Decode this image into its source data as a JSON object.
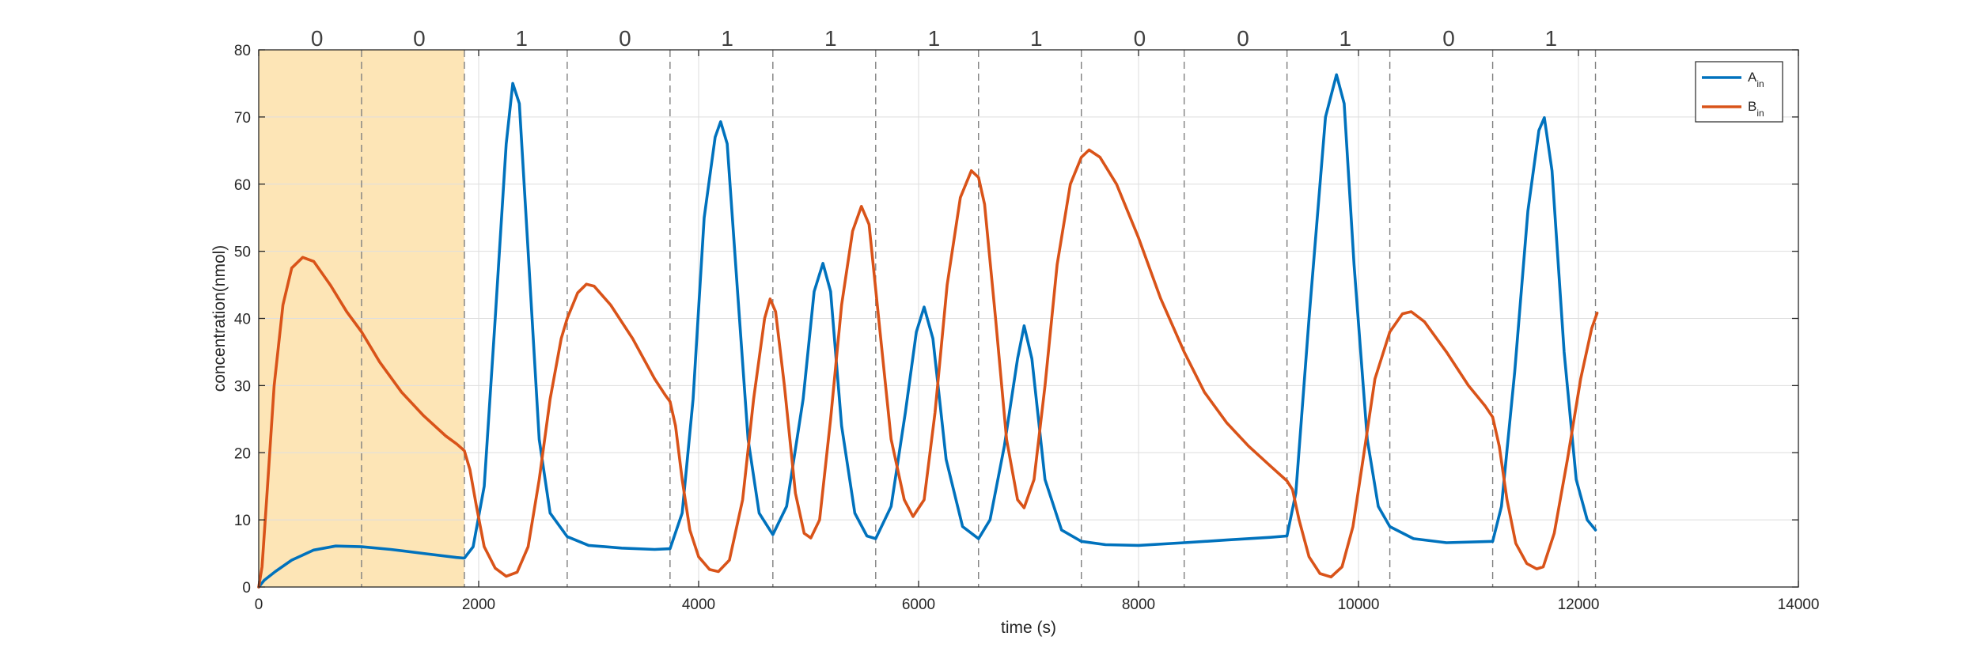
{
  "chart_data": {
    "type": "line",
    "title": "",
    "xlabel": "time (s)",
    "ylabel": "concentration(nmol)",
    "xlim": [
      0,
      14000
    ],
    "ylim": [
      0,
      80
    ],
    "xticks": [
      0,
      2000,
      4000,
      6000,
      8000,
      10000,
      12000,
      14000
    ],
    "yticks": [
      0,
      10,
      20,
      30,
      40,
      50,
      60,
      70,
      80
    ],
    "grid": true,
    "legend_position": "top-right",
    "colors": {
      "A": "#0072BD",
      "B": "#D95319",
      "highlight": "#FDE5B6",
      "divider": "#7f7f7f"
    },
    "highlight_range": [
      0,
      1870
    ],
    "dividers": [
      935,
      1870,
      2805,
      3740,
      4675,
      5610,
      6545,
      7480,
      8415,
      9350,
      10285,
      11220,
      12155
    ],
    "bits": [
      {
        "x": 530,
        "label": "0"
      },
      {
        "x": 1460,
        "label": "0"
      },
      {
        "x": 2390,
        "label": "1"
      },
      {
        "x": 3330,
        "label": "0"
      },
      {
        "x": 4260,
        "label": "1"
      },
      {
        "x": 5200,
        "label": "1"
      },
      {
        "x": 6140,
        "label": "1"
      },
      {
        "x": 7070,
        "label": "1"
      },
      {
        "x": 8010,
        "label": "0"
      },
      {
        "x": 8950,
        "label": "0"
      },
      {
        "x": 9880,
        "label": "1"
      },
      {
        "x": 10820,
        "label": "0"
      },
      {
        "x": 11750,
        "label": "1"
      }
    ],
    "legend": [
      {
        "key": "A",
        "main": "A",
        "sub": "in"
      },
      {
        "key": "B",
        "main": "B",
        "sub": "in"
      }
    ],
    "series": [
      {
        "key": "A",
        "points": [
          [
            0,
            0
          ],
          [
            50,
            1
          ],
          [
            150,
            2.3
          ],
          [
            300,
            4
          ],
          [
            500,
            5.5
          ],
          [
            700,
            6.1
          ],
          [
            935,
            6
          ],
          [
            1200,
            5.6
          ],
          [
            1500,
            5
          ],
          [
            1800,
            4.4
          ],
          [
            1870,
            4.3
          ],
          [
            1950,
            6
          ],
          [
            2050,
            15
          ],
          [
            2150,
            40
          ],
          [
            2250,
            66
          ],
          [
            2310,
            75
          ],
          [
            2370,
            72
          ],
          [
            2450,
            50
          ],
          [
            2550,
            22
          ],
          [
            2650,
            11
          ],
          [
            2805,
            7.5
          ],
          [
            3000,
            6.2
          ],
          [
            3300,
            5.8
          ],
          [
            3600,
            5.6
          ],
          [
            3740,
            5.7
          ],
          [
            3850,
            11
          ],
          [
            3950,
            28
          ],
          [
            4050,
            55
          ],
          [
            4150,
            67
          ],
          [
            4200,
            69.3
          ],
          [
            4260,
            66
          ],
          [
            4350,
            45
          ],
          [
            4450,
            22
          ],
          [
            4550,
            11
          ],
          [
            4675,
            7.8
          ],
          [
            4800,
            12
          ],
          [
            4950,
            28
          ],
          [
            5050,
            44
          ],
          [
            5130,
            48.2
          ],
          [
            5200,
            44
          ],
          [
            5300,
            24
          ],
          [
            5420,
            11
          ],
          [
            5530,
            7.6
          ],
          [
            5610,
            7.2
          ],
          [
            5750,
            12
          ],
          [
            5880,
            26
          ],
          [
            5980,
            38
          ],
          [
            6050,
            41.7
          ],
          [
            6130,
            37
          ],
          [
            6250,
            19
          ],
          [
            6400,
            9
          ],
          [
            6545,
            7.2
          ],
          [
            6650,
            10
          ],
          [
            6780,
            21
          ],
          [
            6900,
            34
          ],
          [
            6960,
            38.9
          ],
          [
            7030,
            34
          ],
          [
            7150,
            16
          ],
          [
            7300,
            8.5
          ],
          [
            7480,
            6.8
          ],
          [
            7700,
            6.3
          ],
          [
            8000,
            6.2
          ],
          [
            8415,
            6.6
          ],
          [
            8800,
            7
          ],
          [
            9200,
            7.4
          ],
          [
            9350,
            7.6
          ],
          [
            9430,
            14
          ],
          [
            9550,
            40
          ],
          [
            9700,
            70
          ],
          [
            9800,
            76.3
          ],
          [
            9870,
            72
          ],
          [
            9960,
            48
          ],
          [
            10080,
            22
          ],
          [
            10180,
            12
          ],
          [
            10285,
            9
          ],
          [
            10500,
            7.2
          ],
          [
            10800,
            6.6
          ],
          [
            11220,
            6.8
          ],
          [
            11300,
            12
          ],
          [
            11420,
            32
          ],
          [
            11540,
            56
          ],
          [
            11640,
            68
          ],
          [
            11690,
            69.9
          ],
          [
            11760,
            62
          ],
          [
            11870,
            35
          ],
          [
            11980,
            16
          ],
          [
            12080,
            10
          ],
          [
            12155,
            8.5
          ]
        ]
      },
      {
        "key": "B",
        "points": [
          [
            0,
            0
          ],
          [
            30,
            3
          ],
          [
            80,
            15
          ],
          [
            140,
            30
          ],
          [
            220,
            42
          ],
          [
            300,
            47.5
          ],
          [
            400,
            49.1
          ],
          [
            500,
            48.5
          ],
          [
            650,
            45
          ],
          [
            800,
            41
          ],
          [
            935,
            38
          ],
          [
            1100,
            33.5
          ],
          [
            1300,
            29
          ],
          [
            1500,
            25.5
          ],
          [
            1700,
            22.5
          ],
          [
            1800,
            21.3
          ],
          [
            1870,
            20.3
          ],
          [
            1920,
            17.5
          ],
          [
            1980,
            12
          ],
          [
            2050,
            6
          ],
          [
            2150,
            2.8
          ],
          [
            2250,
            1.6
          ],
          [
            2350,
            2.2
          ],
          [
            2450,
            6
          ],
          [
            2550,
            16
          ],
          [
            2650,
            28
          ],
          [
            2750,
            37
          ],
          [
            2805,
            40
          ],
          [
            2900,
            43.8
          ],
          [
            2980,
            45.1
          ],
          [
            3050,
            44.8
          ],
          [
            3200,
            42
          ],
          [
            3400,
            37
          ],
          [
            3600,
            31
          ],
          [
            3700,
            28.5
          ],
          [
            3740,
            27.6
          ],
          [
            3790,
            24
          ],
          [
            3850,
            16
          ],
          [
            3920,
            8.5
          ],
          [
            4000,
            4.5
          ],
          [
            4100,
            2.6
          ],
          [
            4180,
            2.3
          ],
          [
            4280,
            4
          ],
          [
            4400,
            13
          ],
          [
            4500,
            28
          ],
          [
            4600,
            40
          ],
          [
            4650,
            42.9
          ],
          [
            4700,
            41
          ],
          [
            4780,
            30
          ],
          [
            4880,
            14
          ],
          [
            4960,
            8
          ],
          [
            5020,
            7.3
          ],
          [
            5100,
            10
          ],
          [
            5200,
            25
          ],
          [
            5300,
            42
          ],
          [
            5400,
            53
          ],
          [
            5480,
            56.7
          ],
          [
            5550,
            54
          ],
          [
            5650,
            38
          ],
          [
            5750,
            22
          ],
          [
            5870,
            13
          ],
          [
            5950,
            10.5
          ],
          [
            6050,
            13
          ],
          [
            6150,
            26
          ],
          [
            6260,
            45
          ],
          [
            6380,
            58
          ],
          [
            6480,
            62
          ],
          [
            6545,
            61
          ],
          [
            6600,
            57
          ],
          [
            6700,
            40
          ],
          [
            6800,
            22
          ],
          [
            6900,
            13
          ],
          [
            6960,
            11.8
          ],
          [
            7050,
            16
          ],
          [
            7150,
            30
          ],
          [
            7260,
            48
          ],
          [
            7380,
            60
          ],
          [
            7480,
            64
          ],
          [
            7550,
            65.1
          ],
          [
            7650,
            64
          ],
          [
            7800,
            60
          ],
          [
            8000,
            52
          ],
          [
            8200,
            43
          ],
          [
            8415,
            35
          ],
          [
            8600,
            29
          ],
          [
            8800,
            24.5
          ],
          [
            9000,
            21
          ],
          [
            9200,
            18
          ],
          [
            9350,
            15.8
          ],
          [
            9400,
            14.5
          ],
          [
            9460,
            10
          ],
          [
            9550,
            4.5
          ],
          [
            9650,
            2
          ],
          [
            9750,
            1.5
          ],
          [
            9850,
            3
          ],
          [
            9950,
            9
          ],
          [
            10050,
            20
          ],
          [
            10150,
            31
          ],
          [
            10285,
            38
          ],
          [
            10400,
            40.7
          ],
          [
            10480,
            41
          ],
          [
            10600,
            39.5
          ],
          [
            10800,
            35
          ],
          [
            11000,
            30
          ],
          [
            11150,
            27
          ],
          [
            11220,
            25.3
          ],
          [
            11280,
            21
          ],
          [
            11350,
            13
          ],
          [
            11430,
            6.5
          ],
          [
            11530,
            3.5
          ],
          [
            11620,
            2.7
          ],
          [
            11680,
            3
          ],
          [
            11780,
            8
          ],
          [
            11900,
            19
          ],
          [
            12020,
            31
          ],
          [
            12120,
            38.5
          ],
          [
            12170,
            40.8
          ]
        ]
      }
    ]
  }
}
